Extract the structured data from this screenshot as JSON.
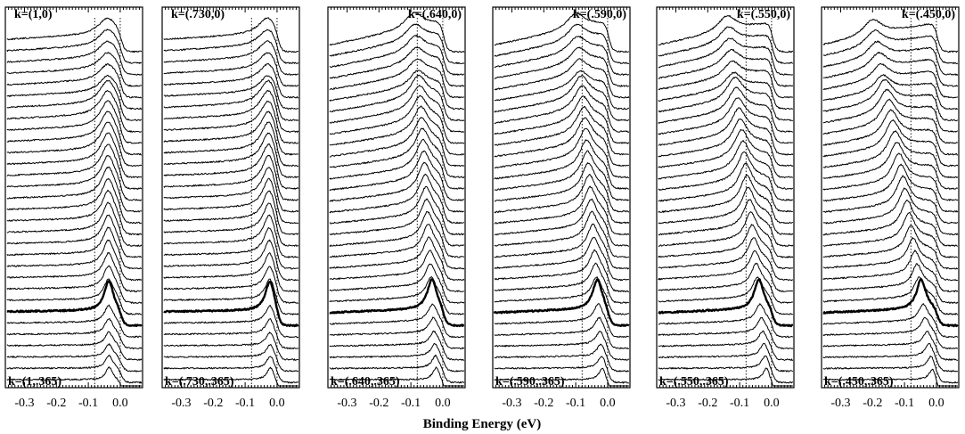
{
  "figure": {
    "x_axis_title": "Binding Energy (eV)"
  },
  "chart_data": {
    "type": "line",
    "xlabel": "Binding Energy (eV)",
    "ylabel": "",
    "xlim": [
      -0.36,
      0.07
    ],
    "x_ticks": [
      -0.3,
      -0.2,
      -0.1,
      0.0
    ],
    "x_tick_labels": [
      "-0.3",
      "-0.2",
      "-0.1",
      "0.0"
    ],
    "guide_lines_x": [
      -0.08,
      0.0
    ],
    "grid": false,
    "curves_per_panel": 31,
    "bold_curve_index": 24,
    "panels": [
      {
        "top_label": "k=(1,0)",
        "bottom_label": "k=(1,.365)",
        "top_label_side": "left",
        "peak_x_top": -0.04,
        "peak_x_bottom": -0.035
      },
      {
        "top_label": "k=(.730,0)",
        "bottom_label": "k=(.730,.365)",
        "top_label_side": "left",
        "peak_x_top": -0.03,
        "peak_x_bottom": -0.02
      },
      {
        "top_label": "k=(.640,0)",
        "bottom_label": "k=(.640,.365)",
        "top_label_side": "right",
        "peak_x_top": -0.09,
        "peak_x_bottom": -0.02
      },
      {
        "top_label": "k=(.590,0)",
        "bottom_label": "k=(.590,.365)",
        "top_label_side": "right",
        "peak_x_top": -0.1,
        "peak_x_bottom": -0.015
      },
      {
        "top_label": "k=(.550,0)",
        "bottom_label": "k=(.550,.365)",
        "top_label_side": "right",
        "peak_x_top": -0.14,
        "peak_x_bottom": -0.015
      },
      {
        "top_label": "k=(.450,0)",
        "bottom_label": "k=(.450,.365)",
        "top_label_side": "right",
        "peak_x_top": -0.2,
        "peak_x_bottom": -0.01
      }
    ]
  }
}
